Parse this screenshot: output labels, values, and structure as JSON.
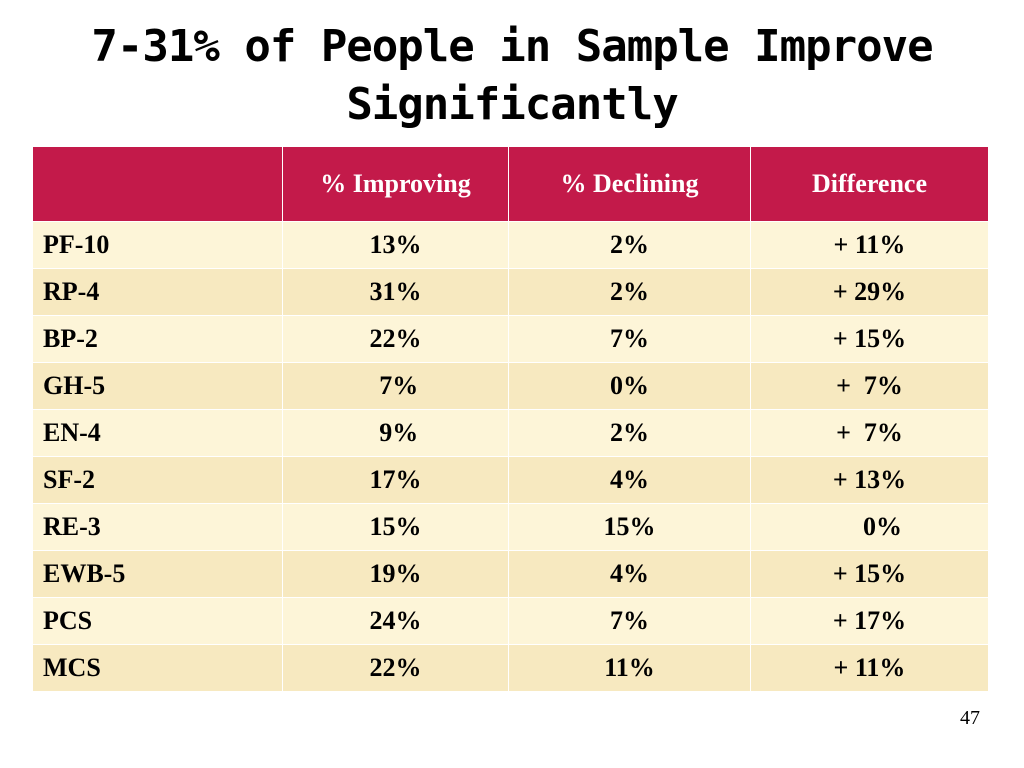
{
  "slide": {
    "title": "7-31% of People in Sample Improve Significantly",
    "page_number": "47"
  },
  "table": {
    "headers": [
      "",
      "% Improving",
      "% Declining",
      "Difference"
    ],
    "rows": [
      {
        "measure": "PF-10",
        "improving": "13%",
        "declining": "2%",
        "difference": "+ 11%"
      },
      {
        "measure": "RP-4",
        "improving": "31%",
        "declining": "2%",
        "difference": "+ 29%"
      },
      {
        "measure": "BP-2",
        "improving": "22%",
        "declining": "7%",
        "difference": "+ 15%"
      },
      {
        "measure": "GH-5",
        "improving": " 7%",
        "declining": "0%",
        "difference": "+  7%"
      },
      {
        "measure": "EN-4",
        "improving": " 9%",
        "declining": "2%",
        "difference": "+  7%"
      },
      {
        "measure": "SF-2",
        "improving": "17%",
        "declining": "4%",
        "difference": "+ 13%"
      },
      {
        "measure": "RE-3",
        "improving": "15%",
        "declining": "15%",
        "difference": "    0%"
      },
      {
        "measure": "EWB-5",
        "improving": "19%",
        "declining": "4%",
        "difference": "+ 15%"
      },
      {
        "measure": "PCS",
        "improving": "24%",
        "declining": "7%",
        "difference": "+ 17%"
      },
      {
        "measure": "MCS",
        "improving": "22%",
        "declining": "11%",
        "difference": "+ 11%"
      }
    ]
  },
  "colors": {
    "header_bg": "#c31a4a",
    "row_light": "#fdf5d8",
    "row_dark": "#f7e9c0"
  }
}
